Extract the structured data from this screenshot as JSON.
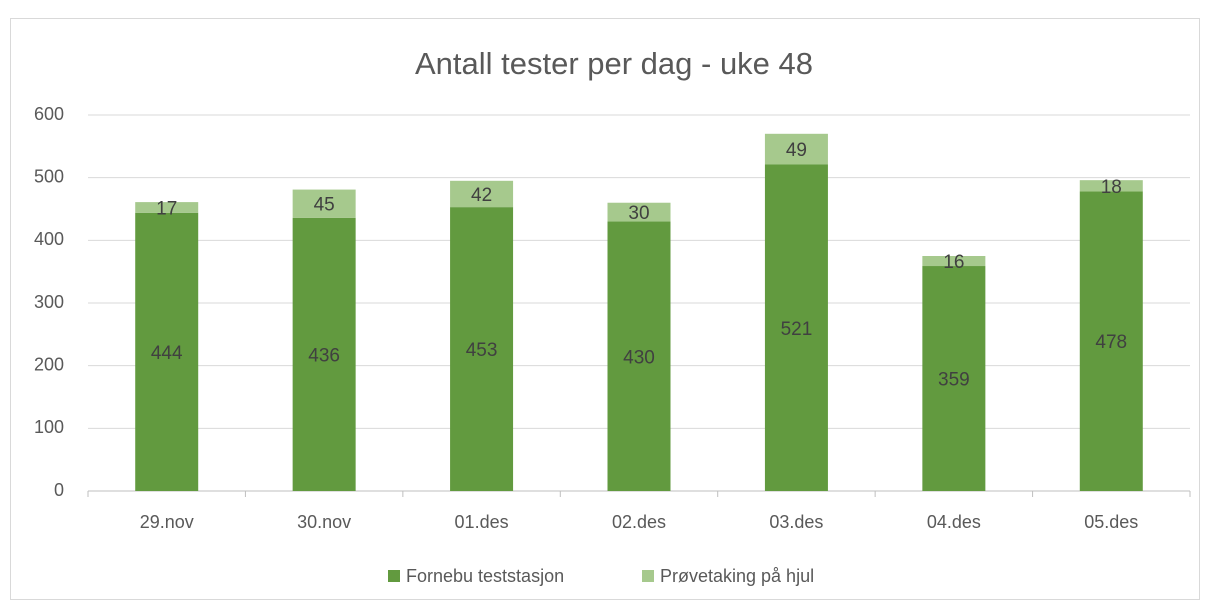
{
  "chart_data": {
    "type": "bar",
    "stacked": true,
    "title": "Antall tester per dag - uke 48",
    "categories": [
      "29.nov",
      "30.nov",
      "01.des",
      "02.des",
      "03.des",
      "04.des",
      "05.des"
    ],
    "series": [
      {
        "name": "Fornebu teststasjon",
        "color": "#629a3f",
        "values": [
          444,
          436,
          453,
          430,
          521,
          359,
          478
        ]
      },
      {
        "name": "Prøvetaking på hjul",
        "color": "#a6c98d",
        "values": [
          17,
          45,
          42,
          30,
          49,
          16,
          18
        ]
      }
    ],
    "ylim": [
      0,
      600
    ],
    "yticks": [
      0,
      100,
      200,
      300,
      400,
      500,
      600
    ],
    "grid": true,
    "legend": "bottom"
  }
}
